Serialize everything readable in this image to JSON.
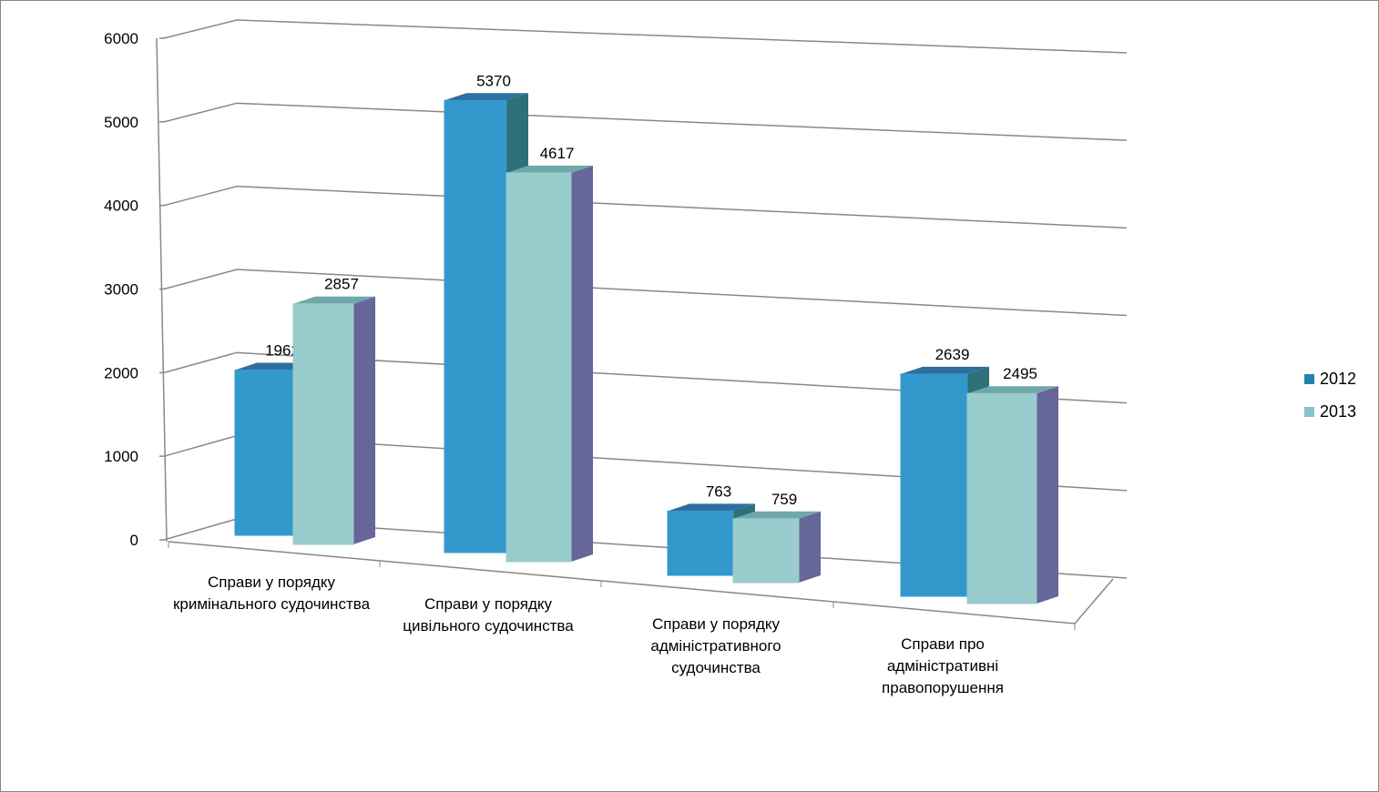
{
  "chart_data": {
    "type": "bar",
    "title": "",
    "xlabel": "",
    "ylabel": "",
    "ylim": [
      0,
      6000
    ],
    "yticks": [
      "0",
      "1000",
      "2000",
      "3000",
      "4000",
      "5000",
      "6000"
    ],
    "grid": true,
    "legend_position": "right",
    "categories": [
      "Справи у порядку кримінального судочинства",
      "Справи у порядку цивільного судочинства",
      "Справи у порядку адміністративного судочинства",
      "Справи про адміністративні правопорушення"
    ],
    "series": [
      {
        "name": "2012",
        "values": [
          1962,
          5370,
          763,
          2639
        ],
        "color": "#3399cc",
        "side": "#2e6f78",
        "top": "#2f6f9f"
      },
      {
        "name": "2013",
        "values": [
          2857,
          4617,
          759,
          2495
        ],
        "color": "#99cccc",
        "side": "#666699",
        "top": "#6fa8a8"
      }
    ]
  }
}
